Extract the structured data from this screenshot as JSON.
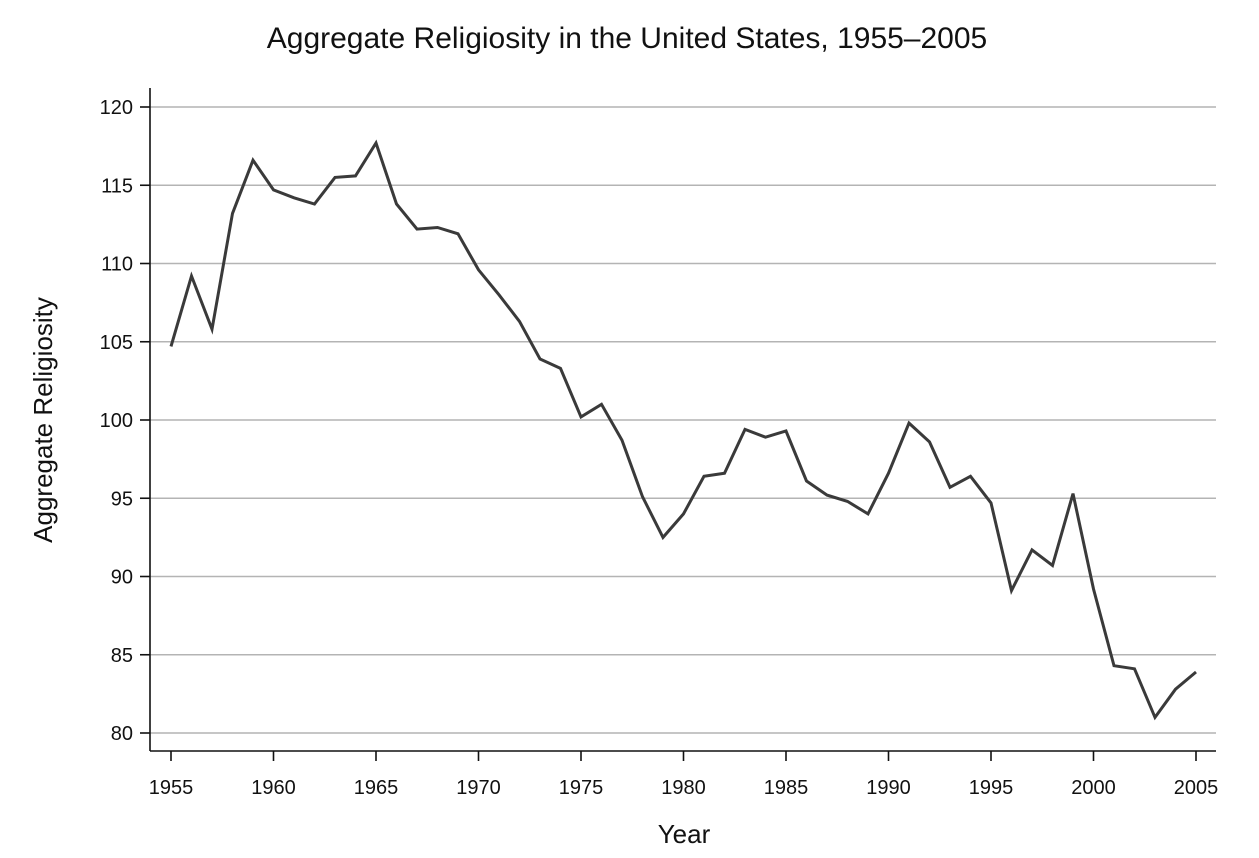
{
  "chart_data": {
    "type": "line",
    "title": "Aggregate Religiosity in the United States, 1955–2005",
    "xlabel": "Year",
    "ylabel": "Aggregate Religiosity",
    "xlim": [
      1955,
      2005
    ],
    "ylim": [
      80,
      120
    ],
    "xticks": [
      1955,
      1960,
      1965,
      1970,
      1975,
      1980,
      1985,
      1990,
      1995,
      2000,
      2005
    ],
    "yticks": [
      80,
      85,
      90,
      95,
      100,
      105,
      110,
      115,
      120
    ],
    "grid": "horizontal",
    "line_color": "#3a3a3a",
    "series": [
      {
        "x": [
          1955,
          1956,
          1957,
          1958,
          1959,
          1960,
          1961,
          1962,
          1963,
          1964,
          1965,
          1966,
          1967,
          1968,
          1969,
          1970,
          1971,
          1972,
          1973,
          1974,
          1975,
          1976,
          1977,
          1978,
          1979,
          1980,
          1981,
          1982,
          1983,
          1984,
          1985,
          1986,
          1987,
          1988,
          1989,
          1990,
          1991,
          1992,
          1993,
          1994,
          1995,
          1996,
          1997,
          1998,
          1999,
          2000,
          2001,
          2002,
          2003,
          2004,
          2005
        ],
        "values": [
          104.7,
          109.2,
          105.8,
          113.2,
          116.6,
          114.7,
          114.2,
          113.8,
          115.5,
          115.6,
          117.7,
          113.8,
          112.2,
          112.3,
          111.9,
          109.6,
          108.0,
          106.3,
          103.9,
          103.3,
          100.2,
          101.0,
          98.7,
          95.1,
          92.5,
          94.0,
          96.4,
          96.6,
          99.4,
          98.9,
          99.3,
          96.1,
          95.2,
          94.8,
          94.0,
          96.6,
          99.8,
          98.6,
          95.7,
          96.4,
          94.7,
          89.1,
          91.7,
          90.7,
          95.3,
          89.2,
          84.3,
          84.1,
          81.0,
          82.8,
          83.9
        ]
      }
    ]
  }
}
